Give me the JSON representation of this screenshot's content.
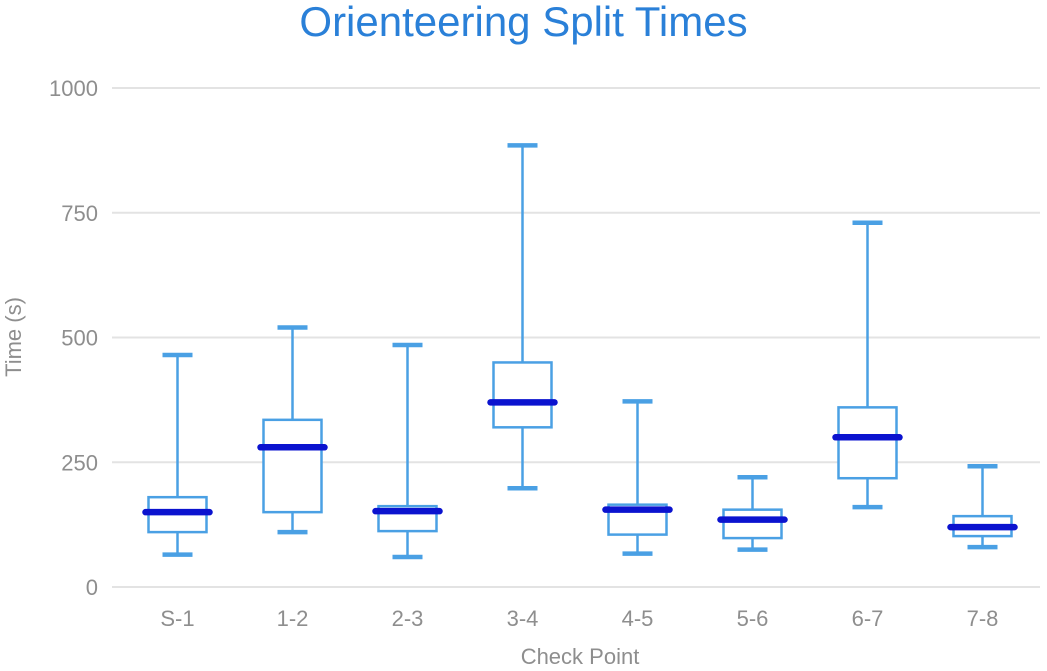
{
  "chart_data": {
    "type": "boxplot",
    "title": "Orienteering Split Times",
    "xlabel": "Check Point",
    "ylabel": "Time (s)",
    "categories": [
      "S-1",
      "1-2",
      "2-3",
      "3-4",
      "4-5",
      "5-6",
      "6-7",
      "7-8"
    ],
    "series": [
      {
        "name": "S-1",
        "min": 65,
        "q1": 110,
        "median": 150,
        "q3": 180,
        "max": 465
      },
      {
        "name": "1-2",
        "min": 110,
        "q1": 150,
        "median": 280,
        "q3": 335,
        "max": 520
      },
      {
        "name": "2-3",
        "min": 60,
        "q1": 112,
        "median": 152,
        "q3": 162,
        "max": 485
      },
      {
        "name": "3-4",
        "min": 198,
        "q1": 320,
        "median": 370,
        "q3": 450,
        "max": 885
      },
      {
        "name": "4-5",
        "min": 67,
        "q1": 105,
        "median": 155,
        "q3": 165,
        "max": 372
      },
      {
        "name": "5-6",
        "min": 75,
        "q1": 98,
        "median": 135,
        "q3": 155,
        "max": 220
      },
      {
        "name": "6-7",
        "min": 160,
        "q1": 218,
        "median": 300,
        "q3": 360,
        "max": 730
      },
      {
        "name": "7-8",
        "min": 80,
        "q1": 102,
        "median": 120,
        "q3": 142,
        "max": 242
      }
    ],
    "ylim": [
      0,
      1000
    ],
    "yticks": [
      0,
      250,
      500,
      750,
      1000
    ],
    "grid": "horizontal",
    "legend": "none",
    "colors": {
      "title": "#2a80d8",
      "box_stroke": "#4aa0e4",
      "median": "#0b13cf",
      "grid_line": "#e3e3e3",
      "axis_text": "#8e8e8e"
    }
  }
}
